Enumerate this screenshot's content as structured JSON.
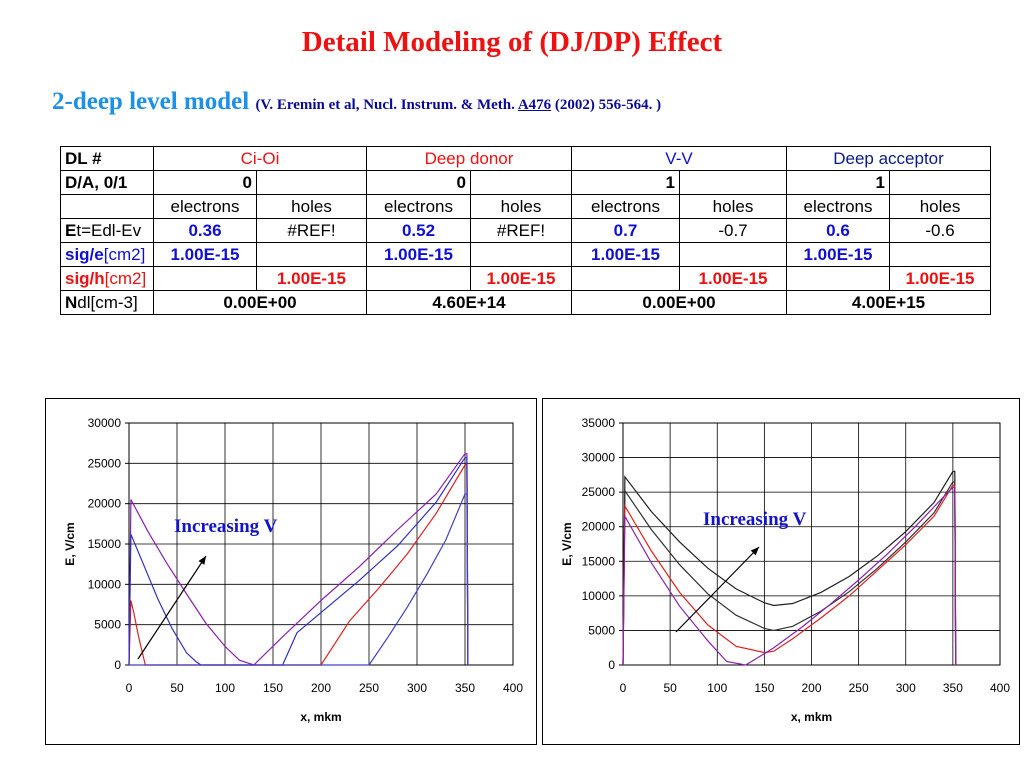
{
  "slide": {
    "title": "Detail Modeling of (DJ/DP) Effect",
    "subtitle": "2-deep level model",
    "reference_prefix": "(V. Eremin et al, Nucl. Instrum. & Meth.",
    "reference_volume": "A476",
    "reference_suffix": "(2002) 556-564.  )"
  },
  "table": {
    "labels": {
      "dl": "DL #",
      "da": "D/A, 0/1",
      "et_b": "E",
      "et_rest": "t=Edl-Ev",
      "sige_b": "sig/e",
      "sige_rest": "[cm2]",
      "sigh_b": "sig/h",
      "sigh_rest": "[cm2]",
      "ndl_b": "N",
      "ndl_rest": "dl[cm-3]"
    },
    "levels": [
      {
        "name": "Ci-Oi",
        "da": "0",
        "et_e": "0.36",
        "et_h": "#REF!",
        "sig_e": "1.00E-15",
        "sig_h": "1.00E-15",
        "ndl": "0.00E+00"
      },
      {
        "name": "Deep donor",
        "da": "0",
        "et_e": "0.52",
        "et_h": "#REF!",
        "sig_e": "1.00E-15",
        "sig_h": "1.00E-15",
        "ndl": "4.60E+14"
      },
      {
        "name": "V-V",
        "da": "1",
        "et_e": "0.7",
        "et_h": "-0.7",
        "sig_e": "1.00E-15",
        "sig_h": "1.00E-15",
        "ndl": "0.00E+00"
      },
      {
        "name": "Deep acceptor",
        "da": "1",
        "et_e": "0.6",
        "et_h": "-0.6",
        "sig_e": "1.00E-15",
        "sig_h": "1.00E-15",
        "ndl": "4.00E+15"
      }
    ],
    "electrons": "electrons",
    "holes": "holes"
  },
  "chart_data": [
    {
      "type": "line",
      "xlabel": "x, mkm",
      "ylabel": "E,  V/cm",
      "xlim": [
        0,
        400
      ],
      "ylim": [
        0,
        30000
      ],
      "xticks": [
        "0",
        "50",
        "100",
        "150",
        "200",
        "250",
        "300",
        "350",
        "400"
      ],
      "yticks": [
        "0",
        "5000",
        "10000",
        "15000",
        "20000",
        "25000",
        "30000"
      ],
      "grid": true,
      "annotation": "Increasing V",
      "series": [
        {
          "color": "#e02020",
          "x": [
            0,
            2,
            5,
            10,
            17,
            22,
            200,
            230,
            260,
            290,
            320,
            350,
            352,
            353
          ],
          "y": [
            0,
            8000,
            6500,
            3500,
            0,
            0,
            0,
            5500,
            9500,
            13800,
            18800,
            24800,
            24800,
            0
          ]
        },
        {
          "color": "#8a20b0",
          "x": [
            0,
            2,
            20,
            40,
            60,
            80,
            100,
            115,
            130,
            160,
            200,
            240,
            280,
            320,
            350,
            352,
            353
          ],
          "y": [
            0,
            20500,
            16500,
            12500,
            8800,
            5200,
            2300,
            600,
            0,
            3500,
            8000,
            12200,
            16800,
            21200,
            26200,
            26200,
            0
          ]
        },
        {
          "color": "#3030c0",
          "x": [
            0,
            2,
            15,
            30,
            45,
            60,
            70,
            75,
            100,
            160,
            175,
            200,
            240,
            280,
            320,
            350,
            352,
            353
          ],
          "y": [
            0,
            16200,
            12500,
            8200,
            4500,
            1500,
            400,
            0,
            0,
            0,
            4000,
            6500,
            10500,
            14800,
            20200,
            25700,
            25700,
            0
          ]
        },
        {
          "color": "#4040c8",
          "x": [
            0,
            250,
            270,
            290,
            310,
            330,
            350,
            352,
            353
          ],
          "y": [
            0,
            0,
            3500,
            7200,
            11200,
            15500,
            21200,
            21200,
            0
          ]
        }
      ]
    },
    {
      "type": "line",
      "xlabel": "x, mkm",
      "ylabel": "E,  V/cm",
      "xlim": [
        0,
        400
      ],
      "ylim": [
        0,
        35000
      ],
      "xticks": [
        "0",
        "50",
        "100",
        "150",
        "200",
        "250",
        "300",
        "350",
        "400"
      ],
      "yticks": [
        "0",
        "5000",
        "10000",
        "15000",
        "20000",
        "25000",
        "30000",
        "35000"
      ],
      "grid": true,
      "annotation": "Increasing V",
      "series": [
        {
          "color": "#202020",
          "x": [
            0,
            2,
            30,
            60,
            90,
            120,
            150,
            160,
            180,
            210,
            240,
            270,
            300,
            330,
            350,
            352,
            353
          ],
          "y": [
            0,
            27200,
            22200,
            17800,
            14000,
            11000,
            9000,
            8600,
            8900,
            10500,
            12800,
            15800,
            19300,
            23500,
            28000,
            28000,
            0
          ]
        },
        {
          "color": "#303030",
          "x": [
            0,
            2,
            30,
            60,
            90,
            120,
            150,
            160,
            180,
            210,
            240,
            270,
            300,
            330,
            350,
            352,
            353
          ],
          "y": [
            0,
            25200,
            19600,
            14500,
            10300,
            7200,
            5300,
            5000,
            5600,
            7800,
            10600,
            14000,
            17800,
            22000,
            26500,
            26500,
            0
          ]
        },
        {
          "color": "#e02020",
          "x": [
            0,
            2,
            30,
            60,
            90,
            120,
            150,
            160,
            180,
            210,
            240,
            270,
            300,
            330,
            350,
            352,
            353
          ],
          "y": [
            0,
            23000,
            16500,
            10500,
            5800,
            2700,
            1800,
            2000,
            3800,
            6800,
            10000,
            13700,
            17400,
            21500,
            26000,
            26000,
            0
          ]
        },
        {
          "color": "#8a20b0",
          "x": [
            0,
            2,
            30,
            60,
            90,
            110,
            130,
            140,
            160,
            190,
            220,
            250,
            280,
            310,
            340,
            350,
            352,
            353
          ],
          "y": [
            0,
            21500,
            14800,
            8500,
            3500,
            500,
            0,
            800,
            2500,
            5500,
            8800,
            12300,
            16000,
            20000,
            24300,
            25700,
            25700,
            0
          ]
        }
      ]
    }
  ]
}
